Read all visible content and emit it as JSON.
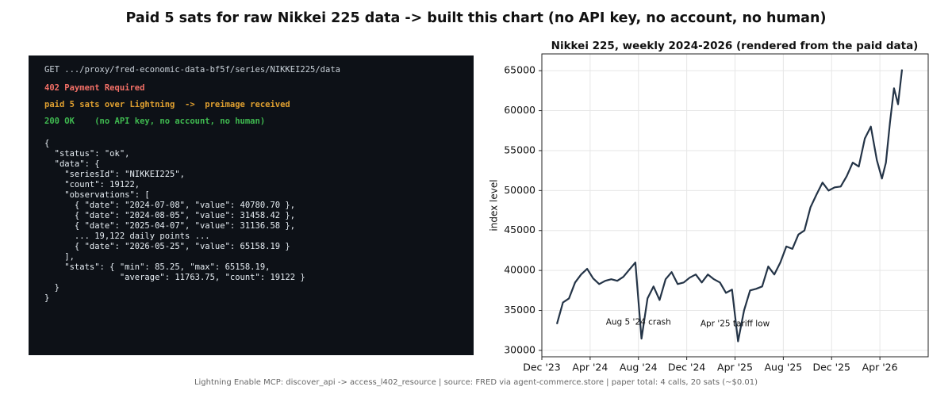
{
  "header": {
    "title": "Paid 5 sats for raw Nikkei 225 data  ->  built this chart  (no API key, no account, no human)"
  },
  "terminal": {
    "lines": [
      {
        "text": "GET .../proxy/fred-economic-data-bf5f/series/NIKKEI225/data",
        "color": "#c9d1d9"
      },
      {
        "text": "402 Payment Required",
        "color": "#f47067"
      },
      {
        "text": "paid 5 sats over Lightning  ->  preimage received",
        "color": "#e0a030"
      },
      {
        "text": "200 OK    (no API key, no account, no human)",
        "color": "#3fb950"
      },
      {
        "text": "{",
        "color": "#e6edf3"
      },
      {
        "text": "  \"status\": \"ok\",",
        "color": "#e6edf3"
      },
      {
        "text": "  \"data\": {",
        "color": "#e6edf3"
      },
      {
        "text": "    \"seriesId\": \"NIKKEI225\",",
        "color": "#e6edf3"
      },
      {
        "text": "    \"count\": 19122,",
        "color": "#e6edf3"
      },
      {
        "text": "    \"observations\": [",
        "color": "#e6edf3"
      },
      {
        "text": "      { \"date\": \"2024-07-08\", \"value\": 40780.70 },",
        "color": "#e6edf3"
      },
      {
        "text": "      { \"date\": \"2024-08-05\", \"value\": 31458.42 },",
        "color": "#e6edf3"
      },
      {
        "text": "      { \"date\": \"2025-04-07\", \"value\": 31136.58 },",
        "color": "#e6edf3"
      },
      {
        "text": "      ... 19,122 daily points ...",
        "color": "#e6edf3"
      },
      {
        "text": "      { \"date\": \"2026-05-25\", \"value\": 65158.19 }",
        "color": "#e6edf3"
      },
      {
        "text": "    ],",
        "color": "#e6edf3"
      },
      {
        "text": "    \"stats\": { \"min\": 85.25, \"max\": 65158.19,",
        "color": "#e6edf3"
      },
      {
        "text": "               \"average\": 11763.75, \"count\": 19122 }",
        "color": "#e6edf3"
      },
      {
        "text": "  }",
        "color": "#e6edf3"
      },
      {
        "text": "}",
        "color": "#e6edf3"
      }
    ]
  },
  "chart_data": {
    "type": "line",
    "title": "Nikkei 225, weekly 2024-2026  (rendered from the paid data)",
    "y_label": "index level",
    "x": [
      "2024-01",
      "2024-01",
      "2024-02",
      "2024-02",
      "2024-03",
      "2024-03",
      "2024-04",
      "2024-04",
      "2024-05",
      "2024-05",
      "2024-06",
      "2024-06",
      "2024-07",
      "2024-07",
      "2024-08",
      "2024-08",
      "2024-09",
      "2024-09",
      "2024-10",
      "2024-10",
      "2024-11",
      "2024-11",
      "2024-12",
      "2024-12",
      "2025-01",
      "2025-01",
      "2025-02",
      "2025-02",
      "2025-03",
      "2025-03",
      "2025-04",
      "2025-04",
      "2025-05",
      "2025-05",
      "2025-06",
      "2025-06",
      "2025-07",
      "2025-07",
      "2025-08",
      "2025-08",
      "2025-09",
      "2025-09",
      "2025-10",
      "2025-10",
      "2025-11",
      "2025-11",
      "2025-12",
      "2025-12",
      "2026-01",
      "2026-01",
      "2026-02",
      "2026-02",
      "2026-03",
      "2026-03",
      "2026-04",
      "2026-04",
      "2026-04",
      "2026-05",
      "2026-05",
      "2026-05"
    ],
    "series": [
      {
        "name": "Nikkei 225",
        "color": "#243447",
        "values": [
          33300,
          36000,
          36500,
          38500,
          39500,
          40200,
          39000,
          38300,
          38700,
          38900,
          38700,
          39200,
          40100,
          41000,
          31458,
          36500,
          38000,
          36300,
          38900,
          39800,
          38300,
          38500,
          39100,
          39500,
          38500,
          39500,
          38900,
          38500,
          37200,
          37600,
          31137,
          35000,
          37500,
          37700,
          38000,
          40500,
          39500,
          41000,
          43000,
          42700,
          44500,
          45000,
          47900,
          49500,
          51000,
          50000,
          50400,
          50500,
          51800,
          53500,
          53000,
          56500,
          58000,
          53800,
          51500,
          53500,
          58500,
          62800,
          60800,
          65158
        ]
      }
    ],
    "xlim": [
      "2023-12",
      "2026-08"
    ],
    "xticks": [
      {
        "value": "2023-12",
        "label": "Dec '23"
      },
      {
        "value": "2024-04",
        "label": "Apr '24"
      },
      {
        "value": "2024-08",
        "label": "Aug '24"
      },
      {
        "value": "2024-12",
        "label": "Dec '24"
      },
      {
        "value": "2025-04",
        "label": "Apr '25"
      },
      {
        "value": "2025-08",
        "label": "Aug '25"
      },
      {
        "value": "2025-12",
        "label": "Dec '25"
      },
      {
        "value": "2026-04",
        "label": "Apr '26"
      }
    ],
    "ylim": [
      29200,
      67100
    ],
    "yticks": [
      30000,
      35000,
      40000,
      45000,
      50000,
      55000,
      60000,
      65000
    ],
    "grid": true,
    "annotations": [
      {
        "text": "Aug 5 '24 crash",
        "x": "2024-08",
        "y": 33500
      },
      {
        "text": "Apr '25 tariff low",
        "x": "2025-04",
        "y": 33300
      }
    ]
  },
  "footer": {
    "text": "Lightning Enable MCP: discover_api -> access_l402_resource  |  source: FRED via agent-commerce.store  |  paper total: 4 calls, 20 sats (~$0.01)"
  }
}
